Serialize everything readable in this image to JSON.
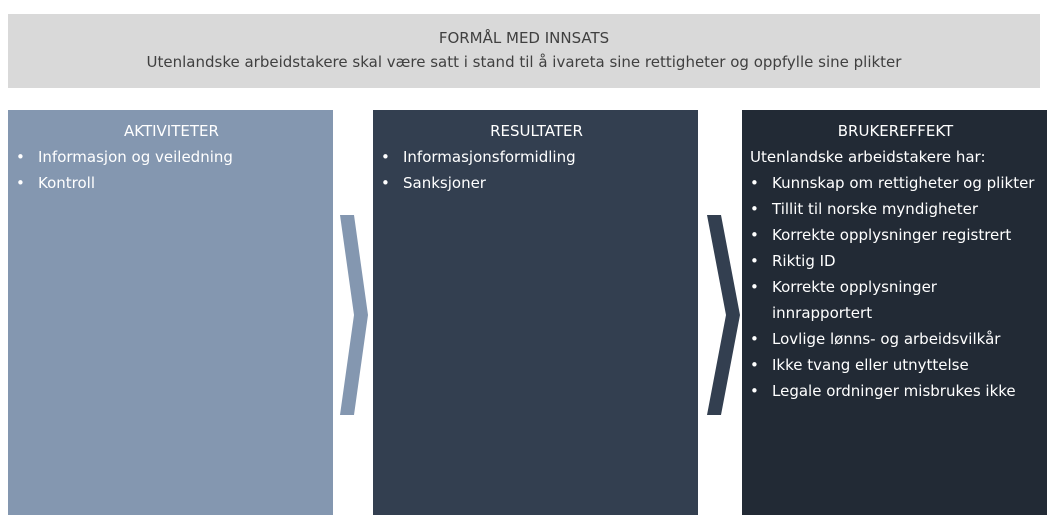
{
  "header": {
    "title": "FORMÅL MED INNSATS",
    "subtitle": "Utenlandske arbeidstakere skal være satt i stand til å ivareta sine rettigheter og oppfylle sine plikter"
  },
  "columns": [
    {
      "title": "AKTIVITETER",
      "items": [
        "Informasjon og veiledning",
        "Kontroll"
      ]
    },
    {
      "title": "RESULTATER",
      "items": [
        "Informasjonsformidling",
        "Sanksjoner"
      ]
    },
    {
      "title": "BRUKEREFFEKT",
      "intro": "Utenlandske arbeidstakere har:",
      "items": [
        "Kunnskap om rettigheter og plikter",
        "Tillit til norske myndigheter",
        "Korrekte opplysninger registrert",
        "Riktig ID",
        "Korrekte opplysninger innrapportert",
        "Lovlige lønns- og arbeidsvilkår",
        "Ikke tvang eller utnyttelse",
        "Legale ordninger misbrukes ikke"
      ]
    }
  ]
}
